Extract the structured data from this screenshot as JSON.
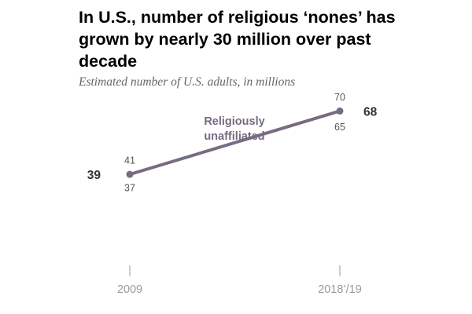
{
  "title": "In U.S., number of religious ‘nones’ has grown by nearly 30 million over past decade",
  "subtitle": "Estimated number of U.S. adults, in millions",
  "chart_data": {
    "type": "line",
    "title": "In U.S., number of religious ‘nones’ has grown by nearly 30 million over past decade",
    "subtitle": "Estimated number of U.S. adults, in millions",
    "categories": [
      "2009",
      "2018’/19"
    ],
    "series": [
      {
        "name": "Religiously unaffiliated",
        "name_lines": [
          "Religiously",
          "unaffiliated"
        ],
        "values": [
          39,
          68
        ],
        "upper": [
          41,
          70
        ],
        "lower": [
          37,
          65
        ],
        "color": "#776b83"
      }
    ],
    "value_labels": [
      "39",
      "68"
    ],
    "upper_labels": [
      "41",
      "70"
    ],
    "lower_labels": [
      "37",
      "65"
    ],
    "ylim": [
      20,
      80
    ],
    "grid": false,
    "legend": "none",
    "colors": {
      "line": "#776b83",
      "axis": "#aaaaaa",
      "interval_text": "#555555",
      "value_text": "#333333"
    }
  }
}
